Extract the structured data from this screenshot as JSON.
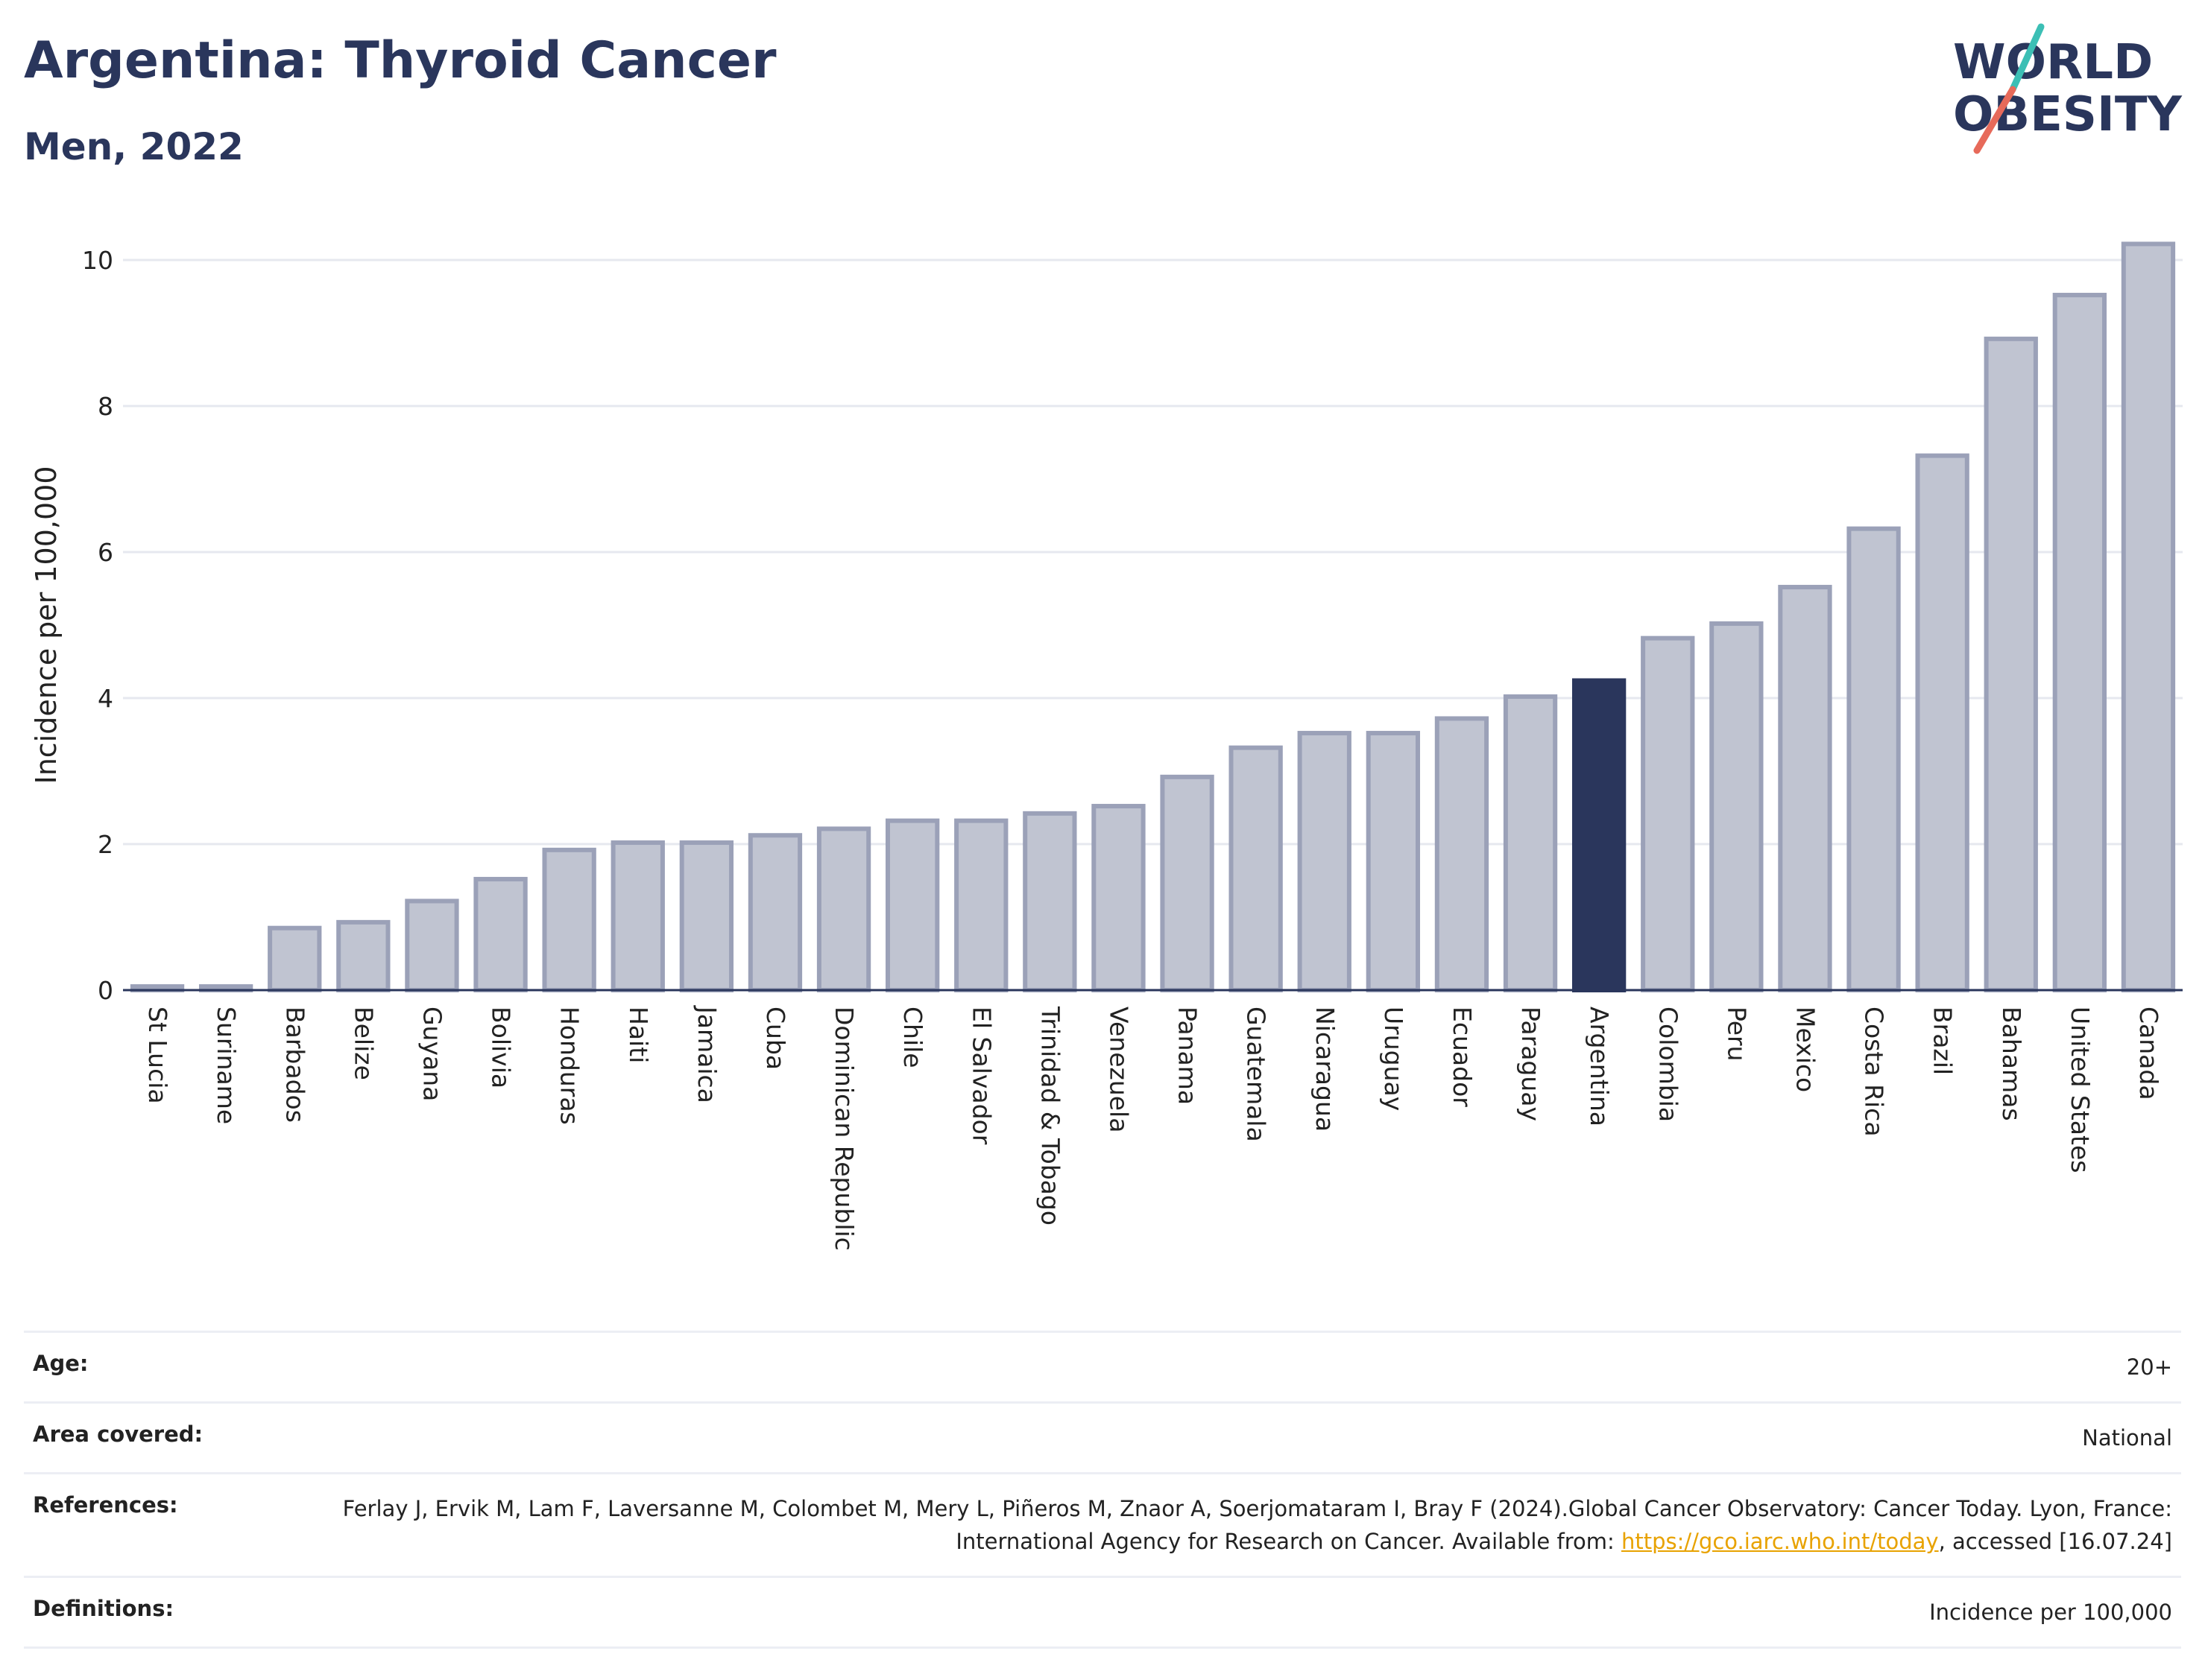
{
  "header": {
    "title": "Argentina: Thyroid Cancer",
    "subtitle": "Men, 2022",
    "logo_line1": "WORLD",
    "logo_line2": "OBESITY"
  },
  "colors": {
    "title": "#2a365c",
    "bar": "#c0c4d1",
    "bar_outline": "#9ba1b8",
    "highlight": "#2a365c",
    "logo_teal": "#3cbfb5",
    "logo_coral": "#e76a5a",
    "link": "#e8a200"
  },
  "chart_data": {
    "type": "bar",
    "title": "Argentina: Thyroid Cancer",
    "subtitle": "Men, 2022",
    "xlabel": "",
    "ylabel": "Incidence per 100,000",
    "ylim": [
      0,
      10.5
    ],
    "yticks": [
      0,
      2,
      4,
      6,
      8,
      10
    ],
    "grid": true,
    "highlight": "Argentina",
    "categories": [
      "St Lucia",
      "Suriname",
      "Barbados",
      "Belize",
      "Guyana",
      "Bolivia",
      "Honduras",
      "Haiti",
      "Jamaica",
      "Cuba",
      "Dominican Republic",
      "Chile",
      "El Salvador",
      "Trinidad & Tobago",
      "Venezuela",
      "Panama",
      "Guatemala",
      "Nicaragua",
      "Uruguay",
      "Ecuador",
      "Paraguay",
      "Argentina",
      "Colombia",
      "Peru",
      "Mexico",
      "Costa Rica",
      "Brazil",
      "Bahamas",
      "United States",
      "Canada"
    ],
    "values": [
      0.05,
      0.05,
      0.85,
      0.93,
      1.22,
      1.52,
      1.92,
      2.02,
      2.02,
      2.12,
      2.21,
      2.32,
      2.32,
      2.42,
      2.52,
      2.92,
      3.32,
      3.52,
      3.52,
      3.72,
      4.02,
      4.24,
      4.82,
      5.02,
      5.52,
      6.32,
      7.32,
      8.92,
      9.52,
      10.22
    ]
  },
  "meta": {
    "age_label": "Age:",
    "age_value": "20+",
    "area_label": "Area covered:",
    "area_value": "National",
    "references_label": "References:",
    "references_text": "Ferlay J, Ervik M, Lam F, Laversanne M, Colombet M, Mery L, Piñeros M, Znaor A, Soerjomataram I, Bray F (2024).Global Cancer Observatory: Cancer Today. Lyon, France: International Agency for Research on Cancer. Available from: ",
    "references_link": "https://gco.iarc.who.int/today",
    "references_suffix": ", accessed [16.07.24]",
    "definitions_label": "Definitions:",
    "definitions_value": "Incidence per 100,000"
  }
}
